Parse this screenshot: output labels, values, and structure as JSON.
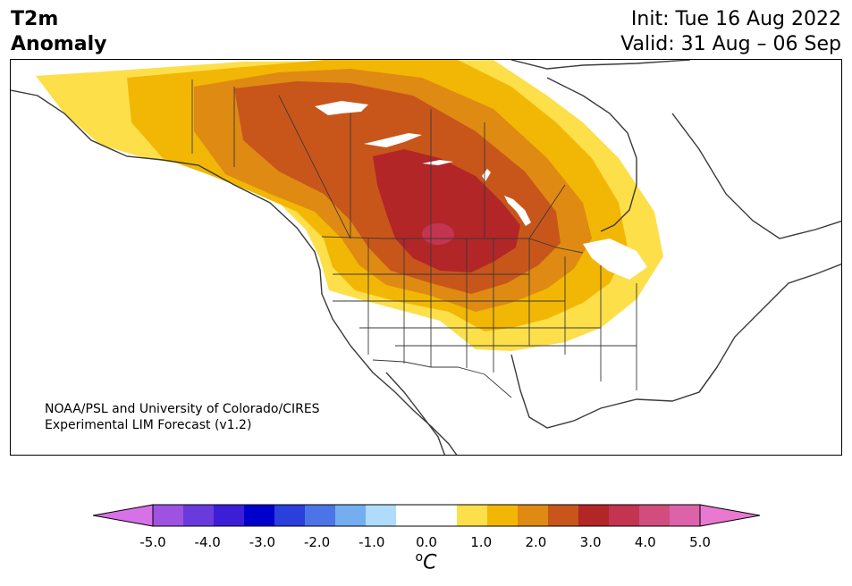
{
  "title": {
    "left_line1": "T2m",
    "left_line2": "Anomaly",
    "init": "Init: Tue 16 Aug 2022",
    "valid": "Valid: 31 Aug – 06 Sep"
  },
  "credit": {
    "line1": "NOAA/PSL and University of Colorado/CIRES",
    "line2": "Experimental LIM Forecast (v1.2)"
  },
  "colorbar": {
    "colors": [
      "#d671e8",
      "#9d52e0",
      "#6a3bdc",
      "#3b1ed6",
      "#0000cc",
      "#2a3fdc",
      "#4d74e6",
      "#74aef0",
      "#aedcfa",
      "#ffffff",
      "#ffffff",
      "#fddf4a",
      "#f2b705",
      "#df8a12",
      "#c8561a",
      "#b22628",
      "#c23450",
      "#d04d7e",
      "#dc62aa",
      "#e878d0"
    ],
    "ticks": [
      "-5.0",
      "-4.0",
      "-3.0",
      "-2.0",
      "-1.0",
      "0.0",
      "1.0",
      "2.0",
      "3.0",
      "4.0",
      "5.0"
    ],
    "unit_super": "o",
    "unit_letter": "C"
  },
  "map": {
    "region": "North America",
    "anomaly_levels": [
      "0.5",
      "1.0",
      "1.5",
      "2.0",
      "2.5",
      "3.0",
      "3.5"
    ],
    "level_colors": [
      "#fddf4a",
      "#f2b705",
      "#df8a12",
      "#c8561a",
      "#b22628",
      "#c23450"
    ]
  }
}
